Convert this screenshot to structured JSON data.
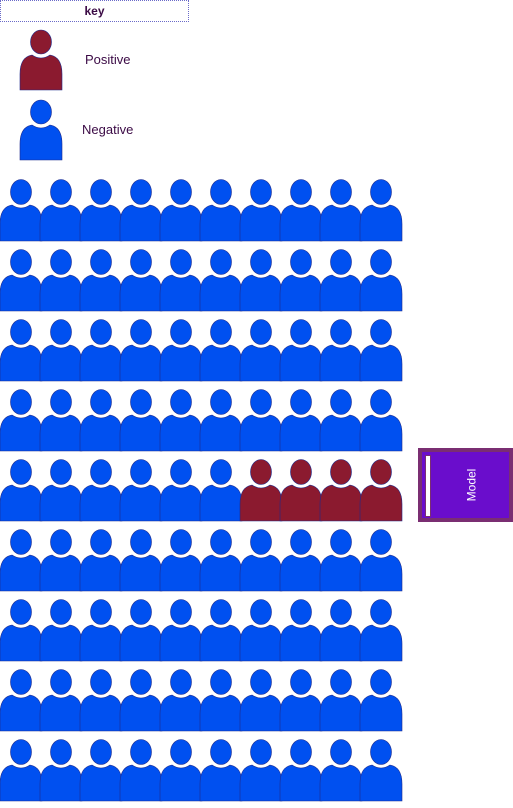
{
  "key": {
    "title": "key",
    "positive_label": "Positive",
    "negative_label": "Negative"
  },
  "colors": {
    "positive": "#8b1a2f",
    "negative": "#0050f0",
    "outline": "#1e2a8c",
    "legend_text": "#3b0a45",
    "model_fill": "#6a0dcc",
    "model_border": "#7a2e72"
  },
  "icons": {
    "person": "person-icon"
  },
  "grid": {
    "rows": 9,
    "cols": 10,
    "positive_cells": [
      [
        4,
        6
      ],
      [
        4,
        7
      ],
      [
        4,
        8
      ],
      [
        4,
        9
      ]
    ]
  },
  "model": {
    "label": "Model"
  }
}
